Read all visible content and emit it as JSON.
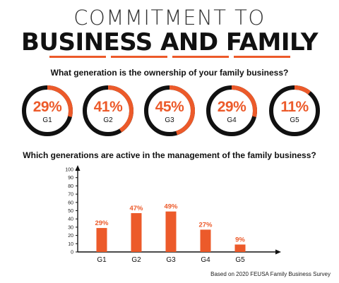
{
  "header": {
    "title_line1": "COMMITMENT TO",
    "title_line2": "BUSINESS AND FAMILY"
  },
  "ownership": {
    "question": "What generation is the ownership of your family business?",
    "items": [
      {
        "label": "G1",
        "percent_label": "29%",
        "value": 29
      },
      {
        "label": "G2",
        "percent_label": "41%",
        "value": 41
      },
      {
        "label": "G3",
        "percent_label": "45%",
        "value": 45
      },
      {
        "label": "G4",
        "percent_label": "29%",
        "value": 29
      },
      {
        "label": "G5",
        "percent_label": "11%",
        "value": 11
      }
    ]
  },
  "management": {
    "question": "Which generations are active in the management of the family business?"
  },
  "chart_data": [
    {
      "type": "pie",
      "title": "What generation is the ownership of your family business?",
      "categories": [
        "G1",
        "G2",
        "G3",
        "G4",
        "G5"
      ],
      "values": [
        29,
        41,
        45,
        29,
        11
      ]
    },
    {
      "type": "bar",
      "title": "Which generations are active in the management of the family business?",
      "categories": [
        "G1",
        "G2",
        "G3",
        "G4",
        "G5"
      ],
      "values": [
        29,
        47,
        49,
        27,
        9
      ],
      "data_labels": [
        "29%",
        "47%",
        "49%",
        "27%",
        "9%"
      ],
      "ylim": [
        0,
        100
      ],
      "yticks": [
        0,
        10,
        20,
        30,
        40,
        50,
        60,
        70,
        80,
        90,
        100
      ],
      "xlabel": "",
      "ylabel": "",
      "grid": false
    }
  ],
  "colors": {
    "accent": "#ec5a2a",
    "dark": "#111111"
  },
  "footer": {
    "source": "Based on 2020 FEUSA Family Business Survey"
  }
}
